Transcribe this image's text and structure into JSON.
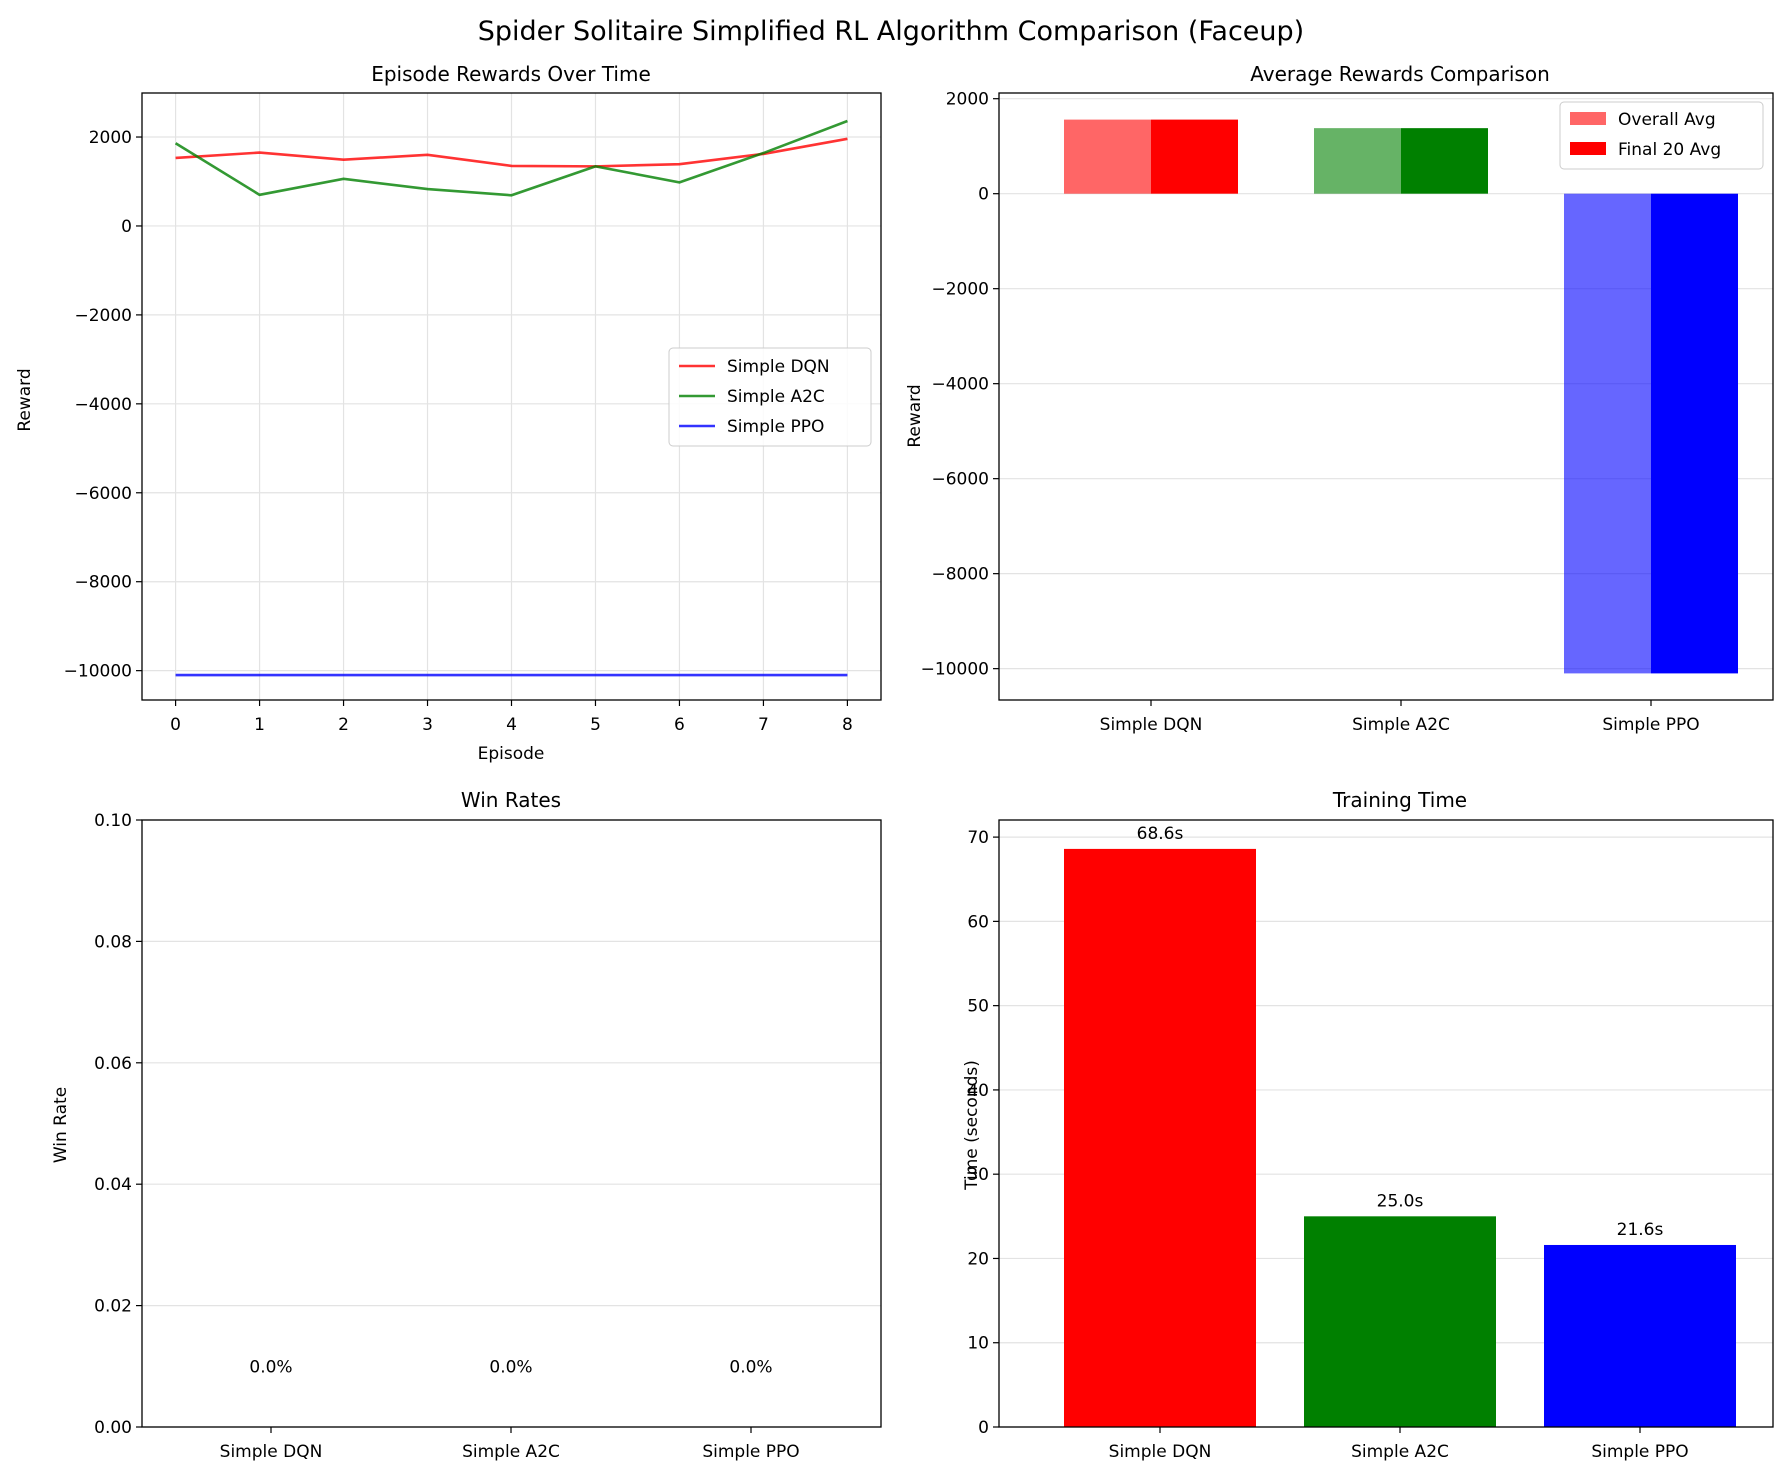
{
  "figure": {
    "title": "Spider Solitaire Simplified RL Algorithm Comparison (Faceup)"
  },
  "chart_data": [
    {
      "type": "line",
      "title": "Episode Rewards Over Time",
      "xlabel": "Episode",
      "ylabel": "Reward",
      "xlim": [
        -0.4,
        8.4
      ],
      "ylim": [
        -10660,
        2990
      ],
      "xticks": [
        0,
        1,
        2,
        3,
        4,
        5,
        6,
        7,
        8
      ],
      "yticks": [
        -10000,
        -8000,
        -6000,
        -4000,
        -2000,
        0,
        2000
      ],
      "grid": true,
      "legend": "center-right",
      "x": [
        0,
        1,
        2,
        3,
        4,
        5,
        6,
        7,
        8
      ],
      "series": [
        {
          "name": "Simple DQN",
          "color": "#ff0000",
          "values": [
            1530,
            1650,
            1490,
            1600,
            1350,
            1340,
            1390,
            1620,
            1960
          ]
        },
        {
          "name": "Simple A2C",
          "color": "#008000",
          "values": [
            1860,
            700,
            1060,
            830,
            690,
            1340,
            980,
            1640,
            2360
          ]
        },
        {
          "name": "Simple PPO",
          "color": "#0000ff",
          "values": [
            -10100,
            -10100,
            -10100,
            -10100,
            -10100,
            -10100,
            -10100,
            -10100,
            -10100
          ]
        }
      ]
    },
    {
      "type": "bar",
      "title": "Average Rewards Comparison",
      "ylabel": "Reward",
      "ylim": [
        -10660,
        2120
      ],
      "yticks": [
        -10000,
        -8000,
        -6000,
        -4000,
        -2000,
        0,
        2000
      ],
      "grid": true,
      "legend": "top-right",
      "categories": [
        "Simple DQN",
        "Simple A2C",
        "Simple PPO"
      ],
      "colors": [
        "#ff0000",
        "#008000",
        "#0000ff"
      ],
      "series": [
        {
          "name": "Overall Avg",
          "alpha": 0.6,
          "values": [
            1560,
            1380,
            -10100
          ]
        },
        {
          "name": "Final 20 Avg",
          "alpha": 1.0,
          "values": [
            1560,
            1380,
            -10100
          ]
        }
      ]
    },
    {
      "type": "bar",
      "title": "Win Rates",
      "ylabel": "Win Rate",
      "ylim": [
        0,
        0.1
      ],
      "yticks": [
        "0.00",
        "0.02",
        "0.04",
        "0.06",
        "0.08",
        "0.10"
      ],
      "grid": true,
      "categories": [
        "Simple DQN",
        "Simple A2C",
        "Simple PPO"
      ],
      "colors": [
        "#ff0000",
        "#008000",
        "#0000ff"
      ],
      "values": [
        0,
        0,
        0
      ],
      "data_labels": [
        "0.0%",
        "0.0%",
        "0.0%"
      ]
    },
    {
      "type": "bar",
      "title": "Training Time",
      "ylabel": "Time (seconds)",
      "ylim": [
        0,
        72.03
      ],
      "yticks": [
        0,
        10,
        20,
        30,
        40,
        50,
        60,
        70
      ],
      "grid": true,
      "categories": [
        "Simple DQN",
        "Simple A2C",
        "Simple PPO"
      ],
      "colors": [
        "#ff0000",
        "#008000",
        "#0000ff"
      ],
      "values": [
        68.6,
        25.0,
        21.6
      ],
      "data_labels": [
        "68.6s",
        "25.0s",
        "21.6s"
      ]
    }
  ]
}
